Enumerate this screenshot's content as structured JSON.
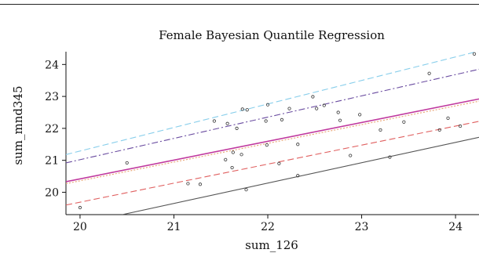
{
  "chart_data": {
    "type": "scatter",
    "title": "Female Bayesian Quantile Regression",
    "xlabel": "sum_126",
    "ylabel": "sum_mnd345",
    "xlim": [
      19.85,
      24.25
    ],
    "ylim": [
      19.3,
      24.4
    ],
    "xticks": [
      20,
      21,
      22,
      23,
      24
    ],
    "yticks": [
      20,
      21,
      22,
      23,
      24
    ],
    "xtick_labels": [
      "20",
      "21",
      "22",
      "23",
      "24"
    ],
    "ytick_labels": [
      "20",
      "21",
      "22",
      "23",
      "24"
    ],
    "grid": false,
    "points": [
      {
        "x": 20.0,
        "y": 19.52
      },
      {
        "x": 20.5,
        "y": 20.92
      },
      {
        "x": 21.15,
        "y": 20.27
      },
      {
        "x": 21.28,
        "y": 20.25
      },
      {
        "x": 21.43,
        "y": 22.23
      },
      {
        "x": 21.55,
        "y": 21.02
      },
      {
        "x": 21.57,
        "y": 22.15
      },
      {
        "x": 21.62,
        "y": 20.77
      },
      {
        "x": 21.63,
        "y": 21.25
      },
      {
        "x": 21.67,
        "y": 22.0
      },
      {
        "x": 21.72,
        "y": 21.18
      },
      {
        "x": 21.73,
        "y": 22.6
      },
      {
        "x": 21.77,
        "y": 20.08
      },
      {
        "x": 21.78,
        "y": 22.58
      },
      {
        "x": 21.98,
        "y": 22.23
      },
      {
        "x": 21.99,
        "y": 21.48
      },
      {
        "x": 22.0,
        "y": 22.74
      },
      {
        "x": 22.12,
        "y": 20.9
      },
      {
        "x": 22.15,
        "y": 22.27
      },
      {
        "x": 22.23,
        "y": 22.62
      },
      {
        "x": 22.32,
        "y": 20.52
      },
      {
        "x": 22.32,
        "y": 21.5
      },
      {
        "x": 22.48,
        "y": 22.99
      },
      {
        "x": 22.52,
        "y": 22.62
      },
      {
        "x": 22.6,
        "y": 22.72
      },
      {
        "x": 22.75,
        "y": 22.5
      },
      {
        "x": 22.77,
        "y": 22.25
      },
      {
        "x": 22.88,
        "y": 21.15
      },
      {
        "x": 22.98,
        "y": 22.43
      },
      {
        "x": 23.2,
        "y": 21.95
      },
      {
        "x": 23.3,
        "y": 21.1
      },
      {
        "x": 23.45,
        "y": 22.2
      },
      {
        "x": 23.72,
        "y": 23.72
      },
      {
        "x": 23.83,
        "y": 21.95
      },
      {
        "x": 23.92,
        "y": 22.32
      },
      {
        "x": 24.05,
        "y": 22.07
      },
      {
        "x": 24.2,
        "y": 24.33
      }
    ],
    "lines": [
      {
        "style": "dashed",
        "color": "#87ceeb",
        "x": [
          19.85,
          24.25
        ],
        "y": [
          21.18,
          24.42
        ]
      },
      {
        "style": "dash-dot",
        "color": "#6a4ca0",
        "x": [
          19.85,
          24.25
        ],
        "y": [
          20.92,
          23.85
        ]
      },
      {
        "style": "solid",
        "color": "#c0399f",
        "x": [
          19.85,
          24.25
        ],
        "y": [
          20.33,
          22.92
        ]
      },
      {
        "style": "dotted",
        "color": "#e8a070",
        "x": [
          19.85,
          24.25
        ],
        "y": [
          20.27,
          22.85
        ]
      },
      {
        "style": "dashed",
        "color": "#e06060",
        "x": [
          19.85,
          24.25
        ],
        "y": [
          19.6,
          22.22
        ]
      },
      {
        "style": "solid",
        "color": "#555555",
        "x": [
          20.45,
          24.25
        ],
        "y": [
          19.3,
          21.72
        ]
      }
    ]
  }
}
